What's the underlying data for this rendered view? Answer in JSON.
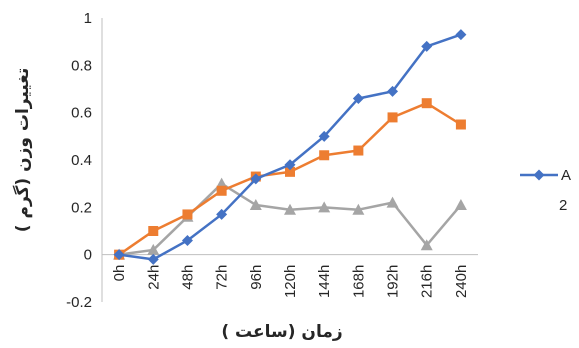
{
  "chart_data": {
    "type": "line",
    "xlabel": "زمان (ساعت )",
    "ylabel": "تغییرات وزن (گرم )",
    "categories": [
      "0h",
      "24h",
      "48h",
      "72h",
      "96h",
      "120h",
      "144h",
      "168h",
      "192h",
      "216h",
      "240h"
    ],
    "y_ticks": [
      "-0.2",
      "0",
      "0.2",
      "0.4",
      "0.6",
      "0.8",
      "1"
    ],
    "ylim": [
      -0.2,
      1
    ],
    "grid": false,
    "legend_position": "right",
    "series": [
      {
        "name": "A",
        "color": "#4472C4",
        "marker": "diamond",
        "values": [
          0,
          -0.02,
          0.06,
          0.17,
          0.32,
          0.38,
          0.5,
          0.66,
          0.69,
          0.88,
          0.93
        ]
      },
      {
        "name": "",
        "color": "#ED7D31",
        "marker": "square",
        "values": [
          0,
          0.1,
          0.17,
          0.27,
          0.33,
          0.35,
          0.42,
          0.44,
          0.58,
          0.64,
          0.55
        ]
      },
      {
        "name": "2",
        "color": "#A5A5A5",
        "marker": "triangle",
        "values": [
          0,
          0.02,
          0.16,
          0.3,
          0.21,
          0.19,
          0.2,
          0.19,
          0.22,
          0.04,
          0.21
        ]
      }
    ]
  }
}
